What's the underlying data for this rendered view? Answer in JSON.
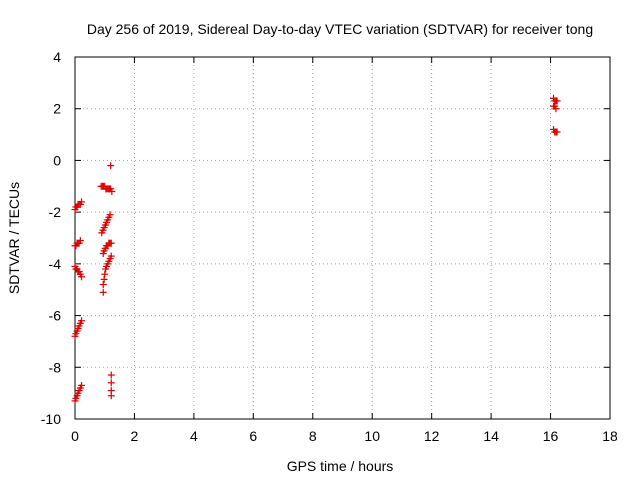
{
  "chart_data": {
    "type": "scatter",
    "title": "Day 256 of 2019, Sidereal Day-to-day VTEC variation (SDTVAR) for receiver tong",
    "xlabel": "GPS time / hours",
    "ylabel": "SDTVAR / TECUs",
    "xlim": [
      0,
      18
    ],
    "ylim": [
      -10,
      4
    ],
    "xticks": [
      0,
      2,
      4,
      6,
      8,
      10,
      12,
      14,
      16,
      18
    ],
    "yticks": [
      -10,
      -8,
      -6,
      -4,
      -2,
      0,
      2,
      4
    ],
    "grid": true,
    "marker": "plus",
    "color": "#e00000",
    "series": [
      {
        "name": "SDTVAR",
        "points": [
          [
            0.0,
            -9.3
          ],
          [
            0.03,
            -9.2
          ],
          [
            0.07,
            -9.1
          ],
          [
            0.1,
            -9.0
          ],
          [
            0.14,
            -8.9
          ],
          [
            0.18,
            -8.8
          ],
          [
            0.22,
            -8.7
          ],
          [
            0.0,
            -6.8
          ],
          [
            0.03,
            -6.7
          ],
          [
            0.07,
            -6.6
          ],
          [
            0.1,
            -6.5
          ],
          [
            0.14,
            -6.4
          ],
          [
            0.18,
            -6.3
          ],
          [
            0.22,
            -6.2
          ],
          [
            0.0,
            -4.1
          ],
          [
            0.03,
            -4.2
          ],
          [
            0.07,
            -4.2
          ],
          [
            0.1,
            -4.3
          ],
          [
            0.14,
            -4.3
          ],
          [
            0.18,
            -4.4
          ],
          [
            0.22,
            -4.5
          ],
          [
            0.0,
            -3.3
          ],
          [
            0.03,
            -3.3
          ],
          [
            0.07,
            -3.2
          ],
          [
            0.1,
            -3.2
          ],
          [
            0.14,
            -3.2
          ],
          [
            0.18,
            -3.1
          ],
          [
            0.0,
            -1.9
          ],
          [
            0.03,
            -1.8
          ],
          [
            0.07,
            -1.8
          ],
          [
            0.1,
            -1.7
          ],
          [
            0.14,
            -1.7
          ],
          [
            0.18,
            -1.7
          ],
          [
            0.22,
            -1.6
          ],
          [
            0.95,
            -5.1
          ],
          [
            0.95,
            -4.8
          ],
          [
            0.98,
            -4.6
          ],
          [
            1.0,
            -4.4
          ],
          [
            1.03,
            -4.2
          ],
          [
            1.06,
            -4.1
          ],
          [
            1.1,
            -4.0
          ],
          [
            1.14,
            -3.9
          ],
          [
            1.18,
            -3.8
          ],
          [
            1.22,
            -3.7
          ],
          [
            0.95,
            -3.6
          ],
          [
            0.98,
            -3.5
          ],
          [
            1.02,
            -3.4
          ],
          [
            1.06,
            -3.3
          ],
          [
            1.1,
            -3.3
          ],
          [
            1.14,
            -3.2
          ],
          [
            1.18,
            -3.2
          ],
          [
            1.22,
            -3.2
          ],
          [
            0.9,
            -2.8
          ],
          [
            0.94,
            -2.7
          ],
          [
            0.98,
            -2.6
          ],
          [
            1.02,
            -2.5
          ],
          [
            1.06,
            -2.4
          ],
          [
            1.1,
            -2.3
          ],
          [
            1.14,
            -2.2
          ],
          [
            1.18,
            -2.1
          ],
          [
            0.88,
            -1.0
          ],
          [
            0.92,
            -1.0
          ],
          [
            0.96,
            -1.0
          ],
          [
            1.0,
            -1.0
          ],
          [
            1.04,
            -1.1
          ],
          [
            1.08,
            -1.1
          ],
          [
            1.12,
            -1.1
          ],
          [
            1.16,
            -1.1
          ],
          [
            1.2,
            -1.1
          ],
          [
            1.24,
            -1.2
          ],
          [
            1.2,
            -0.2
          ],
          [
            1.22,
            -8.3
          ],
          [
            1.22,
            -8.6
          ],
          [
            1.22,
            -8.9
          ],
          [
            1.22,
            -9.1
          ],
          [
            16.1,
            2.4
          ],
          [
            16.14,
            2.3
          ],
          [
            16.18,
            2.3
          ],
          [
            16.22,
            2.3
          ],
          [
            16.1,
            2.1
          ],
          [
            16.14,
            2.1
          ],
          [
            16.18,
            2.0
          ],
          [
            16.1,
            1.2
          ],
          [
            16.14,
            1.1
          ],
          [
            16.18,
            1.1
          ],
          [
            16.22,
            1.1
          ]
        ]
      }
    ]
  }
}
